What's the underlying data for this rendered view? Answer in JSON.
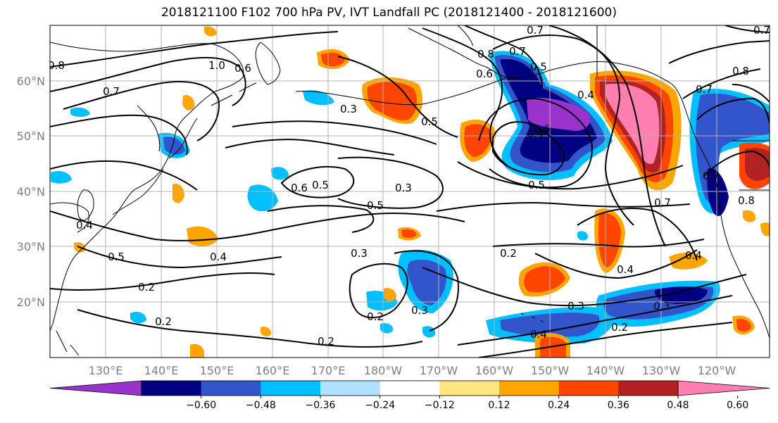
{
  "title": "2018121100 F102 700 hPa PV, IVT Landfall PC (2018121400 - 2018121600)",
  "lat_labels": [
    "60°N",
    "50°N",
    "40°N",
    "30°N",
    "20°N"
  ],
  "lon_labels": [
    "130°E",
    "140°E",
    "150°E",
    "160°E",
    "170°E",
    "180°W",
    "170°W",
    "160°W",
    "150°W",
    "140°W",
    "130°W",
    "120°W"
  ],
  "colorbar": {
    "colors": [
      "#9933cc",
      "#000080",
      "#3355cc",
      "#00bfff",
      "#b0e0ff",
      "#ffffff",
      "#ffe680",
      "#ffa500",
      "#ff4500",
      "#b22222",
      "#ff80b0"
    ],
    "ticks": [
      "−0.60",
      "−0.48",
      "−0.36",
      "−0.24",
      "−0.12",
      "0.12",
      "0.24",
      "0.36",
      "0.48",
      "0.60"
    ]
  },
  "contour_labels": [
    "0.8",
    "1.0",
    "0.7",
    "0.7",
    "0.6",
    "0.7",
    "0.5",
    "0.6",
    "0.7",
    "0.4",
    "0.6",
    "0.7",
    "0.8",
    "0.8",
    "0.8",
    "0.7",
    "0.3",
    "0.5",
    "0.6",
    "0.5",
    "0.3",
    "0.5",
    "0.5",
    "0.7",
    "0.4",
    "0.5",
    "0.4",
    "0.4",
    "0.3",
    "0.2",
    "0.2",
    "0.2",
    "0.3",
    "0.2",
    "0.2",
    "0.4",
    "0.3",
    "0.4",
    "0.2",
    "0.3",
    "0.4"
  ]
}
